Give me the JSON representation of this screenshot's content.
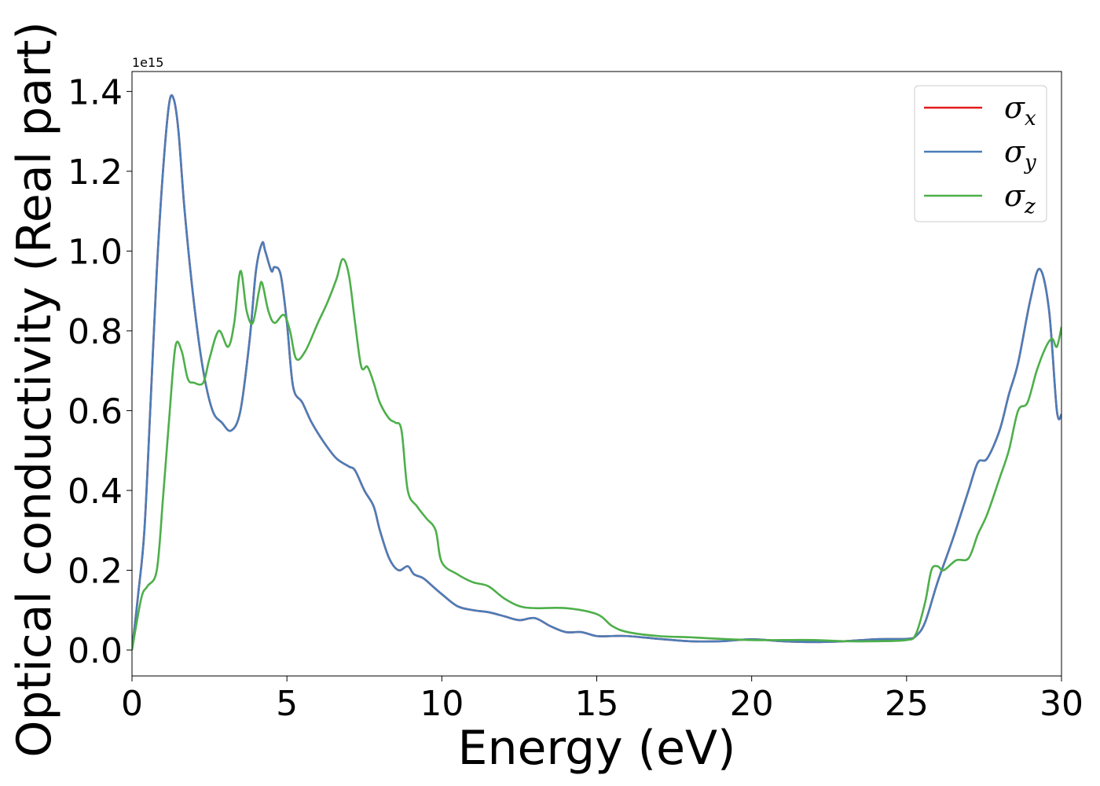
{
  "chart_data": {
    "type": "line",
    "xlabel": "Energy (eV)",
    "ylabel": "Optical conductivity (Real part)",
    "y_offset_text": "1e15",
    "y_multiplier": 1000000000000000.0,
    "xlim": [
      0,
      30
    ],
    "ylim": [
      -0.065,
      1.45
    ],
    "x_ticks": [
      0,
      5,
      10,
      15,
      20,
      25,
      30
    ],
    "x_tick_labels": [
      "0",
      "5",
      "10",
      "15",
      "20",
      "25",
      "30"
    ],
    "y_ticks": [
      0.0,
      0.2,
      0.4,
      0.6,
      0.8,
      1.0,
      1.2,
      1.4
    ],
    "y_tick_labels": [
      "0.0",
      "0.2",
      "0.4",
      "0.6",
      "0.8",
      "1.0",
      "1.2",
      "1.4"
    ],
    "grid": false,
    "legend_position": "top-right",
    "series": [
      {
        "name": "σx",
        "legend_symbol": "σ",
        "legend_subscript": "x",
        "color": "#e41a1c",
        "x": [
          0,
          0.2,
          0.4,
          0.6,
          0.8,
          1.0,
          1.2,
          1.35,
          1.5,
          1.7,
          2.0,
          2.3,
          2.6,
          2.9,
          3.2,
          3.5,
          3.8,
          4.0,
          4.2,
          4.3,
          4.5,
          4.6,
          4.8,
          5.0,
          5.2,
          5.5,
          5.8,
          6.2,
          6.6,
          7.0,
          7.2,
          7.5,
          7.8,
          8.0,
          8.3,
          8.6,
          8.9,
          9.1,
          9.4,
          9.7,
          10.0,
          10.5,
          11.0,
          11.5,
          12.0,
          12.5,
          13.0,
          13.5,
          14.0,
          14.5,
          15.0,
          15.5,
          16.0,
          17.0,
          18.0,
          19.0,
          20.0,
          21.0,
          22.0,
          23.0,
          24.0,
          25.0,
          25.3,
          25.6,
          26.0,
          26.5,
          27.0,
          27.3,
          27.6,
          28.0,
          28.3,
          28.6,
          29.0,
          29.3,
          29.6,
          29.85,
          30.0
        ],
        "values": [
          0.0,
          0.14,
          0.3,
          0.62,
          0.95,
          1.2,
          1.37,
          1.38,
          1.3,
          1.1,
          0.87,
          0.7,
          0.6,
          0.57,
          0.55,
          0.6,
          0.78,
          0.95,
          1.02,
          1.0,
          0.95,
          0.96,
          0.94,
          0.82,
          0.66,
          0.62,
          0.57,
          0.52,
          0.48,
          0.46,
          0.45,
          0.4,
          0.36,
          0.3,
          0.23,
          0.2,
          0.21,
          0.19,
          0.18,
          0.16,
          0.14,
          0.11,
          0.1,
          0.095,
          0.085,
          0.075,
          0.08,
          0.06,
          0.045,
          0.045,
          0.035,
          0.035,
          0.035,
          0.028,
          0.022,
          0.022,
          0.027,
          0.022,
          0.02,
          0.022,
          0.027,
          0.028,
          0.035,
          0.07,
          0.17,
          0.28,
          0.4,
          0.47,
          0.48,
          0.55,
          0.64,
          0.72,
          0.88,
          0.955,
          0.85,
          0.6,
          0.59
        ]
      },
      {
        "name": "σy",
        "legend_symbol": "σ",
        "legend_subscript": "y",
        "color": "#4b7db8",
        "x": [
          0,
          0.2,
          0.4,
          0.6,
          0.8,
          1.0,
          1.2,
          1.35,
          1.5,
          1.7,
          2.0,
          2.3,
          2.6,
          2.9,
          3.2,
          3.5,
          3.8,
          4.0,
          4.2,
          4.3,
          4.5,
          4.6,
          4.8,
          5.0,
          5.2,
          5.5,
          5.8,
          6.2,
          6.6,
          7.0,
          7.2,
          7.5,
          7.8,
          8.0,
          8.3,
          8.6,
          8.9,
          9.1,
          9.4,
          9.7,
          10.0,
          10.5,
          11.0,
          11.5,
          12.0,
          12.5,
          13.0,
          13.5,
          14.0,
          14.5,
          15.0,
          15.5,
          16.0,
          17.0,
          18.0,
          19.0,
          20.0,
          21.0,
          22.0,
          23.0,
          24.0,
          25.0,
          25.3,
          25.6,
          26.0,
          26.5,
          27.0,
          27.3,
          27.6,
          28.0,
          28.3,
          28.6,
          29.0,
          29.3,
          29.6,
          29.85,
          30.0
        ],
        "values": [
          0.0,
          0.14,
          0.3,
          0.62,
          0.95,
          1.2,
          1.37,
          1.38,
          1.3,
          1.1,
          0.87,
          0.7,
          0.6,
          0.57,
          0.55,
          0.6,
          0.78,
          0.95,
          1.02,
          1.0,
          0.95,
          0.96,
          0.94,
          0.82,
          0.66,
          0.62,
          0.57,
          0.52,
          0.48,
          0.46,
          0.45,
          0.4,
          0.36,
          0.3,
          0.23,
          0.2,
          0.21,
          0.19,
          0.18,
          0.16,
          0.14,
          0.11,
          0.1,
          0.095,
          0.085,
          0.075,
          0.08,
          0.06,
          0.045,
          0.045,
          0.035,
          0.035,
          0.035,
          0.028,
          0.022,
          0.022,
          0.027,
          0.022,
          0.02,
          0.022,
          0.027,
          0.028,
          0.035,
          0.07,
          0.17,
          0.28,
          0.4,
          0.47,
          0.48,
          0.55,
          0.64,
          0.72,
          0.88,
          0.955,
          0.85,
          0.6,
          0.59
        ]
      },
      {
        "name": "σz",
        "legend_symbol": "σ",
        "legend_subscript": "z",
        "color": "#4daf4a",
        "x": [
          0,
          0.3,
          0.5,
          0.8,
          1.0,
          1.2,
          1.4,
          1.6,
          1.8,
          2.0,
          2.3,
          2.5,
          2.8,
          3.1,
          3.3,
          3.5,
          3.7,
          3.9,
          4.1,
          4.2,
          4.4,
          4.6,
          4.9,
          5.1,
          5.3,
          5.6,
          6.0,
          6.3,
          6.6,
          6.8,
          7.0,
          7.2,
          7.4,
          7.6,
          7.8,
          8.0,
          8.3,
          8.5,
          8.7,
          8.9,
          9.2,
          9.5,
          9.8,
          10.0,
          10.5,
          11.0,
          11.5,
          12.0,
          12.5,
          13.0,
          14.0,
          15.0,
          15.5,
          16.0,
          17.0,
          18.0,
          19.0,
          20.0,
          21.0,
          22.0,
          23.0,
          24.0,
          25.0,
          25.3,
          25.6,
          25.8,
          26.0,
          26.2,
          26.6,
          27.0,
          27.3,
          27.6,
          28.0,
          28.3,
          28.6,
          28.9,
          29.2,
          29.5,
          29.7,
          29.85,
          30.0
        ],
        "values": [
          0.0,
          0.13,
          0.16,
          0.2,
          0.38,
          0.58,
          0.76,
          0.75,
          0.68,
          0.67,
          0.67,
          0.73,
          0.8,
          0.76,
          0.82,
          0.95,
          0.85,
          0.82,
          0.9,
          0.92,
          0.85,
          0.82,
          0.84,
          0.8,
          0.73,
          0.75,
          0.82,
          0.87,
          0.93,
          0.98,
          0.94,
          0.82,
          0.71,
          0.71,
          0.67,
          0.62,
          0.58,
          0.57,
          0.55,
          0.4,
          0.36,
          0.33,
          0.3,
          0.22,
          0.19,
          0.17,
          0.16,
          0.13,
          0.11,
          0.105,
          0.105,
          0.09,
          0.06,
          0.045,
          0.035,
          0.032,
          0.028,
          0.025,
          0.025,
          0.025,
          0.022,
          0.022,
          0.025,
          0.04,
          0.12,
          0.2,
          0.21,
          0.2,
          0.225,
          0.23,
          0.29,
          0.34,
          0.43,
          0.5,
          0.6,
          0.62,
          0.7,
          0.76,
          0.78,
          0.76,
          0.81
        ]
      }
    ]
  }
}
